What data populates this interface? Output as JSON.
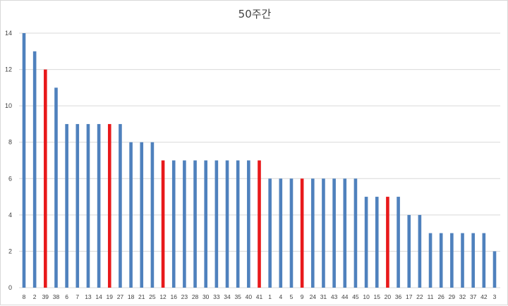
{
  "chart_data": {
    "type": "bar",
    "title": "50주간",
    "xlabel": "",
    "ylabel": "",
    "ylim": [
      0,
      14
    ],
    "yticks": [
      0,
      2,
      4,
      6,
      8,
      10,
      12,
      14
    ],
    "grid": true,
    "legend": "none",
    "colors": {
      "default": "#4f81bd",
      "highlight": "#e8191b",
      "grid": "#d9d9d9"
    },
    "categories": [
      "8",
      "2",
      "39",
      "38",
      "6",
      "7",
      "13",
      "14",
      "19",
      "27",
      "18",
      "21",
      "25",
      "12",
      "16",
      "23",
      "28",
      "30",
      "33",
      "34",
      "35",
      "40",
      "41",
      "1",
      "4",
      "5",
      "9",
      "24",
      "31",
      "43",
      "44",
      "45",
      "10",
      "15",
      "20",
      "36",
      "17",
      "22",
      "11",
      "26",
      "29",
      "32",
      "37",
      "42",
      "3"
    ],
    "values": [
      14,
      13,
      12,
      11,
      9,
      9,
      9,
      9,
      9,
      9,
      8,
      8,
      8,
      7,
      7,
      7,
      7,
      7,
      7,
      7,
      7,
      7,
      7,
      6,
      6,
      6,
      6,
      6,
      6,
      6,
      6,
      6,
      5,
      5,
      5,
      5,
      4,
      4,
      3,
      3,
      3,
      3,
      3,
      3,
      2
    ],
    "highlight": [
      false,
      false,
      true,
      false,
      false,
      false,
      false,
      false,
      true,
      false,
      false,
      false,
      false,
      true,
      false,
      false,
      false,
      false,
      false,
      false,
      false,
      false,
      true,
      false,
      false,
      false,
      true,
      false,
      false,
      false,
      false,
      false,
      false,
      false,
      true,
      false,
      false,
      false,
      false,
      false,
      false,
      false,
      false,
      false,
      false
    ]
  }
}
